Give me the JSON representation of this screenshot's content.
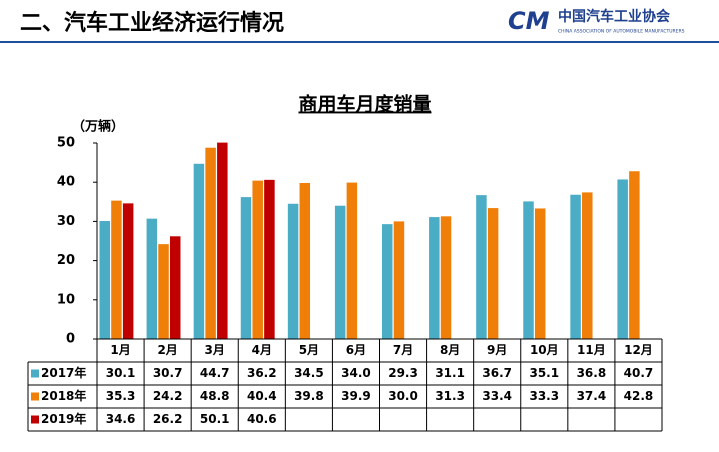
{
  "header": {
    "title": "二、汽车工业经济运行情况",
    "logo_mark": "CM",
    "logo_name": "中国汽车工业协会",
    "logo_subtitle": "CHINA ASSOCIATION OF AUTOMOBILE MANUFACTURERS"
  },
  "chart_data": {
    "type": "bar",
    "title": "商用车月度销量",
    "y_label": "（万辆）",
    "categories": [
      "1月",
      "2月",
      "3月",
      "4月",
      "5月",
      "6月",
      "7月",
      "8月",
      "9月",
      "10月",
      "11月",
      "12月"
    ],
    "series": [
      {
        "name": "2017年",
        "color": "#4bacc6",
        "values": [
          30.1,
          30.7,
          44.7,
          36.2,
          34.5,
          34.0,
          29.3,
          31.1,
          36.7,
          35.1,
          36.8,
          40.7
        ],
        "value_labels": [
          "30.1",
          "30.7",
          "44.7",
          "36.2",
          "34.5",
          "34.0",
          "29.3",
          "31.1",
          "36.7",
          "35.1",
          "36.8",
          "40.7"
        ]
      },
      {
        "name": "2018年",
        "color": "#f07f09",
        "values": [
          35.3,
          24.2,
          48.8,
          40.4,
          39.8,
          39.9,
          30.0,
          31.3,
          33.4,
          33.3,
          37.4,
          42.8
        ],
        "value_labels": [
          "35.3",
          "24.2",
          "48.8",
          "40.4",
          "39.8",
          "39.9",
          "30.0",
          "31.3",
          "33.4",
          "33.3",
          "37.4",
          "42.8"
        ]
      },
      {
        "name": "2019年",
        "color": "#c00000",
        "values": [
          34.6,
          26.2,
          50.1,
          40.6,
          null,
          null,
          null,
          null,
          null,
          null,
          null,
          null
        ],
        "value_labels": [
          "34.6",
          "26.2",
          "50.1",
          "40.6",
          null,
          null,
          null,
          null,
          null,
          null,
          null,
          null
        ]
      }
    ],
    "ylim": [
      0,
      50
    ],
    "yticks": [
      0,
      10,
      20,
      30,
      40,
      50
    ],
    "grid": false
  }
}
